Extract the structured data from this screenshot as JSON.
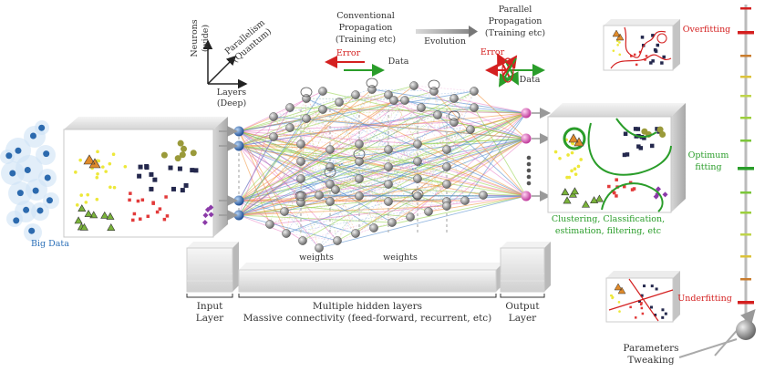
{
  "axes": {
    "neurons": "Neurons (wide)",
    "parallelism": "Parallelism (Quantum)",
    "layers_line1": "Layers",
    "layers_line2": "(Deep)"
  },
  "propagation": {
    "conventional_l1": "Conventional",
    "conventional_l2": "Propagation",
    "conventional_l3": "(Training etc)",
    "evolution": "Evolution",
    "parallel_l1": "Parallel",
    "parallel_l2": "Propagation",
    "parallel_l3": "(Training etc)",
    "error_left": "Error",
    "data_left": "Data",
    "error_right": "Error",
    "data_right": "Data"
  },
  "big_data": "Big Data",
  "weights_left": "weights",
  "weights_right": "weights",
  "layers": {
    "input_l1": "Input",
    "input_l2": "Layer",
    "hidden_l1": "Multiple hidden layers",
    "hidden_l2": "Massive connectivity (feed-forward, recurrent, etc)",
    "output_l1": "Output",
    "output_l2": "Layer"
  },
  "result": {
    "line1": "Clustering, Classification,",
    "line2": "estimation, filtering, etc"
  },
  "fitting": {
    "overfitting": "Overfitting",
    "optimum_l1": "Optimum",
    "optimum_l2": "fitting",
    "underfitting": "Underfitting",
    "tweak_l1": "Parameters",
    "tweak_l2": "Tweaking"
  },
  "colors": {
    "orange": "#f08a2e",
    "green": "#8ccf3c",
    "blue": "#3f7fc8",
    "pink": "#e77ac2",
    "red": "#d42020",
    "optimum_green": "#2a9d2a"
  }
}
